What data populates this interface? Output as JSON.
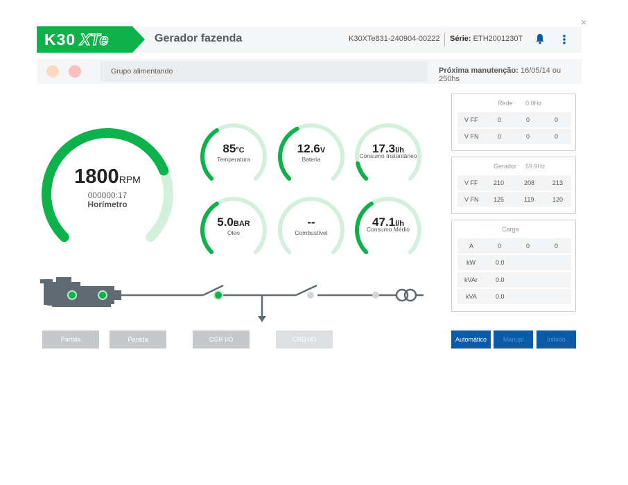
{
  "header": {
    "logo_text": "K30XTe",
    "title": "Gerador fazenda",
    "device_id": "K30XTe831-240904-00222",
    "serie_label": "Série:",
    "serie_value": "ETH2001230T",
    "close_glyph": "×"
  },
  "status": {
    "text": "Grupo alimentando",
    "maintenance_label": "Próxima manutenção:",
    "maintenance_value": "16/05/14 ou 250hs"
  },
  "rpm_gauge": {
    "value": "1800",
    "unit": "RPM",
    "hours": "000000:17",
    "label": "Horímetro",
    "fill_fraction": 0.75
  },
  "gauges": [
    {
      "value": "85",
      "unit": "°C",
      "label": "Temperatura",
      "fill_fraction": 0.38
    },
    {
      "value": "12.6",
      "unit": "V",
      "label": "Bateria",
      "fill_fraction": 0.4
    },
    {
      "value": "17.3",
      "unit": "l/h",
      "label": "Consumo Instantâneo",
      "fill_fraction": 0.12
    },
    {
      "value": "5.0",
      "unit": "BAR",
      "label": "Óleo",
      "fill_fraction": 0.38
    },
    {
      "value": "--",
      "unit": "",
      "label": "Combustível",
      "fill_fraction": 0
    },
    {
      "value": "47.1",
      "unit": "l/h",
      "label": "Consumo Médio",
      "fill_fraction": 0.38
    }
  ],
  "rede": {
    "title": "Rede",
    "freq": "0.0Hz",
    "rows": [
      {
        "label": "V FF",
        "v": [
          "0",
          "0",
          "0"
        ]
      },
      {
        "label": "V FN",
        "v": [
          "0",
          "0",
          "0"
        ]
      }
    ]
  },
  "gerador": {
    "title": "Gerador",
    "freq": "59.9Hz",
    "rows": [
      {
        "label": "V FF",
        "v": [
          "210",
          "208",
          "213"
        ]
      },
      {
        "label": "V FN",
        "v": [
          "125",
          "119",
          "120"
        ]
      }
    ]
  },
  "carga": {
    "title": "Carga",
    "rows": [
      {
        "label": "A",
        "v": [
          "0",
          "0",
          "0"
        ]
      },
      {
        "label": "kW",
        "v": [
          "0.0",
          "",
          ""
        ]
      },
      {
        "label": "kVAr",
        "v": [
          "0.0",
          "",
          ""
        ]
      },
      {
        "label": "kVA",
        "v": [
          "0.0",
          "",
          ""
        ]
      }
    ]
  },
  "buttons": {
    "partida": "Partida",
    "parada": "Parada",
    "cgr": "CGR I/O",
    "crd": "CRD I/O",
    "automatico": "Automático",
    "manual": "Manual",
    "inibido": "Inibido"
  },
  "colors": {
    "brand_green": "#0db24a",
    "gauge_track": "#d3f0dd",
    "brand_blue": "#0b5aa7",
    "led_orange": "#ffd9c0",
    "led_red": "#ffbfc2"
  }
}
